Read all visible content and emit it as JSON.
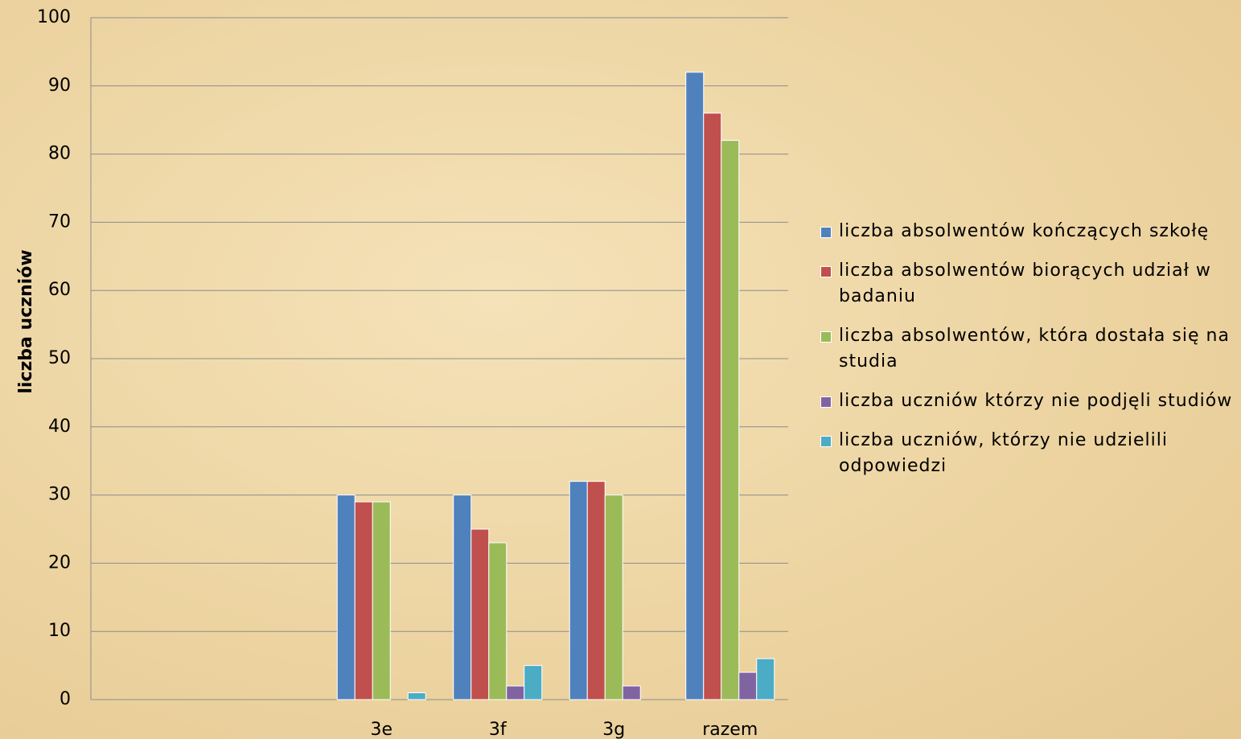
{
  "chart_data": {
    "type": "bar",
    "y_label": "liczba uczniów",
    "categories": [
      null,
      null,
      "3e",
      "3f",
      "3g",
      "razem"
    ],
    "series": [
      {
        "name": "liczba absolwentów kończących szkołę",
        "color": "#4f81bd",
        "values": [
          null,
          null,
          30,
          30,
          32,
          92
        ]
      },
      {
        "name": "liczba absolwentów biorących udział w badaniu",
        "color": "#c0504d",
        "values": [
          null,
          null,
          29,
          25,
          32,
          86
        ]
      },
      {
        "name": "liczba absolwentów, która dostała się na studia",
        "color": "#9bbb59",
        "values": [
          null,
          null,
          29,
          23,
          30,
          82
        ]
      },
      {
        "name": "liczba uczniów którzy nie podjęli studiów",
        "color": "#8064a2",
        "values": [
          null,
          null,
          0,
          2,
          2,
          4
        ]
      },
      {
        "name": "liczba uczniów,  którzy nie udzielili odpowiedzi",
        "color": "#4bacc6",
        "values": [
          null,
          null,
          1,
          5,
          0,
          6
        ]
      }
    ],
    "ylim": [
      0,
      100
    ],
    "yticks": [
      0,
      10,
      20,
      30,
      40,
      50,
      60,
      70,
      80,
      90,
      100
    ],
    "grid": true,
    "legend": "right"
  }
}
